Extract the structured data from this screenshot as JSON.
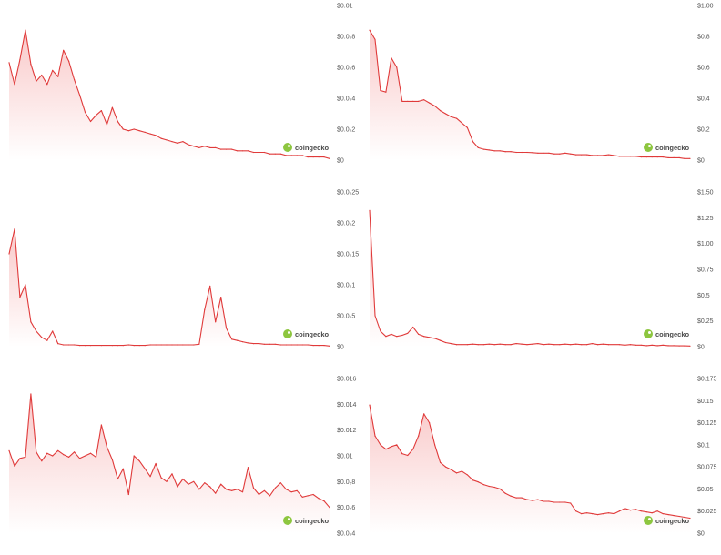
{
  "watermark": "coingecko",
  "colors": {
    "line": "#e03a3a",
    "fill_top": "#f9c9c9",
    "fill_bottom": "#ffffff",
    "axis_text": "#555555"
  },
  "chart_data": [
    {
      "type": "area",
      "ylim": [
        0,
        0.01
      ],
      "y_ticks": [
        "$0.01",
        "$0.0₂8",
        "$0.0₂6",
        "$0.0₂4",
        "$0.0₂2",
        "$0"
      ],
      "x": [
        0,
        1,
        2,
        3,
        4,
        5,
        6,
        7,
        8,
        9,
        10,
        11,
        12,
        13,
        14,
        15,
        16,
        17,
        18,
        19,
        20,
        21,
        22,
        23,
        24,
        25,
        26,
        27,
        28,
        29,
        30,
        31,
        32,
        33,
        34,
        35,
        36,
        37,
        38,
        39,
        40,
        41,
        42,
        43,
        44,
        45,
        46,
        47,
        48,
        49,
        50,
        51,
        52,
        53,
        54,
        55,
        56,
        57,
        58,
        59
      ],
      "values": [
        0.0063,
        0.0049,
        0.0065,
        0.0084,
        0.0062,
        0.0051,
        0.0055,
        0.0049,
        0.0058,
        0.0054,
        0.0071,
        0.0064,
        0.0052,
        0.0042,
        0.0031,
        0.0025,
        0.0029,
        0.0032,
        0.0023,
        0.0034,
        0.0025,
        0.002,
        0.0019,
        0.002,
        0.0019,
        0.0018,
        0.0017,
        0.0016,
        0.0014,
        0.0013,
        0.0012,
        0.0011,
        0.0012,
        0.001,
        0.0009,
        0.0008,
        0.0009,
        0.0008,
        0.0008,
        0.0007,
        0.0007,
        0.0007,
        0.0006,
        0.0006,
        0.0006,
        0.0005,
        0.0005,
        0.0005,
        0.0004,
        0.0004,
        0.0004,
        0.0003,
        0.0003,
        0.0003,
        0.0003,
        0.0002,
        0.0002,
        0.0002,
        0.0002,
        0.0001
      ]
    },
    {
      "type": "area",
      "ylim": [
        0,
        1.0
      ],
      "y_ticks": [
        "$1.00",
        "$0.8",
        "$0.6",
        "$0.4",
        "$0.2",
        "$0"
      ],
      "x": [
        0,
        1,
        2,
        3,
        4,
        5,
        6,
        7,
        8,
        9,
        10,
        11,
        12,
        13,
        14,
        15,
        16,
        17,
        18,
        19,
        20,
        21,
        22,
        23,
        24,
        25,
        26,
        27,
        28,
        29,
        30,
        31,
        32,
        33,
        34,
        35,
        36,
        37,
        38,
        39,
        40,
        41,
        42,
        43,
        44,
        45,
        46,
        47,
        48,
        49,
        50,
        51,
        52,
        53,
        54,
        55,
        56,
        57,
        58,
        59
      ],
      "values": [
        0.84,
        0.78,
        0.45,
        0.44,
        0.66,
        0.6,
        0.38,
        0.38,
        0.38,
        0.38,
        0.39,
        0.37,
        0.35,
        0.32,
        0.3,
        0.28,
        0.27,
        0.24,
        0.21,
        0.12,
        0.08,
        0.07,
        0.065,
        0.06,
        0.06,
        0.055,
        0.055,
        0.05,
        0.05,
        0.05,
        0.048,
        0.045,
        0.045,
        0.045,
        0.04,
        0.04,
        0.045,
        0.04,
        0.035,
        0.035,
        0.035,
        0.03,
        0.03,
        0.03,
        0.035,
        0.03,
        0.025,
        0.025,
        0.025,
        0.025,
        0.02,
        0.02,
        0.02,
        0.02,
        0.02,
        0.015,
        0.015,
        0.015,
        0.01,
        0.01
      ]
    },
    {
      "type": "area",
      "ylim": [
        0,
        0.025
      ],
      "y_ticks": [
        "$0.0₂25",
        "$0.0₂2",
        "$0.0₂15",
        "$0.0₂1",
        "$0.0₂5",
        "$0"
      ],
      "x": [
        0,
        1,
        2,
        3,
        4,
        5,
        6,
        7,
        8,
        9,
        10,
        11,
        12,
        13,
        14,
        15,
        16,
        17,
        18,
        19,
        20,
        21,
        22,
        23,
        24,
        25,
        26,
        27,
        28,
        29,
        30,
        31,
        32,
        33,
        34,
        35,
        36,
        37,
        38,
        39,
        40,
        41,
        42,
        43,
        44,
        45,
        46,
        47,
        48,
        49,
        50,
        51,
        52,
        53,
        54,
        55,
        56,
        57,
        58,
        59
      ],
      "values": [
        0.015,
        0.019,
        0.008,
        0.01,
        0.004,
        0.0025,
        0.0015,
        0.001,
        0.0025,
        0.0005,
        0.0003,
        0.0003,
        0.0003,
        0.0002,
        0.0002,
        0.0002,
        0.0002,
        0.0002,
        0.0002,
        0.0002,
        0.0002,
        0.0002,
        0.0003,
        0.0002,
        0.0002,
        0.0002,
        0.0003,
        0.0003,
        0.0003,
        0.0003,
        0.0003,
        0.0003,
        0.0003,
        0.0003,
        0.0003,
        0.0004,
        0.006,
        0.0098,
        0.004,
        0.008,
        0.003,
        0.0012,
        0.001,
        0.0008,
        0.0006,
        0.0005,
        0.0005,
        0.0004,
        0.0004,
        0.0004,
        0.0003,
        0.0003,
        0.0003,
        0.0003,
        0.0003,
        0.0003,
        0.0002,
        0.0002,
        0.0002,
        0.0001
      ]
    },
    {
      "type": "area",
      "ylim": [
        0,
        1.5
      ],
      "y_ticks": [
        "$1.50",
        "$1.25",
        "$1.00",
        "$0.75",
        "$0.5",
        "$0.25",
        "$0"
      ],
      "x": [
        0,
        1,
        2,
        3,
        4,
        5,
        6,
        7,
        8,
        9,
        10,
        11,
        12,
        13,
        14,
        15,
        16,
        17,
        18,
        19,
        20,
        21,
        22,
        23,
        24,
        25,
        26,
        27,
        28,
        29,
        30,
        31,
        32,
        33,
        34,
        35,
        36,
        37,
        38,
        39,
        40,
        41,
        42,
        43,
        44,
        45,
        46,
        47,
        48,
        49,
        50,
        51,
        52,
        53,
        54,
        55,
        56,
        57,
        58,
        59
      ],
      "values": [
        1.32,
        0.3,
        0.15,
        0.1,
        0.12,
        0.1,
        0.11,
        0.13,
        0.19,
        0.12,
        0.1,
        0.09,
        0.08,
        0.06,
        0.04,
        0.03,
        0.02,
        0.02,
        0.02,
        0.025,
        0.02,
        0.02,
        0.025,
        0.02,
        0.025,
        0.02,
        0.02,
        0.03,
        0.025,
        0.02,
        0.025,
        0.03,
        0.02,
        0.025,
        0.02,
        0.02,
        0.025,
        0.02,
        0.025,
        0.02,
        0.02,
        0.03,
        0.02,
        0.025,
        0.02,
        0.02,
        0.02,
        0.015,
        0.02,
        0.015,
        0.015,
        0.01,
        0.015,
        0.01,
        0.015,
        0.01,
        0.01,
        0.008,
        0.008,
        0.006
      ]
    },
    {
      "type": "area",
      "ylim": [
        0.004,
        0.016
      ],
      "y_ticks": [
        "$0.016",
        "$0.014",
        "$0.012",
        "$0.01",
        "$0.0₂8",
        "$0.0₂6",
        "$0.0₂4"
      ],
      "x": [
        0,
        1,
        2,
        3,
        4,
        5,
        6,
        7,
        8,
        9,
        10,
        11,
        12,
        13,
        14,
        15,
        16,
        17,
        18,
        19,
        20,
        21,
        22,
        23,
        24,
        25,
        26,
        27,
        28,
        29,
        30,
        31,
        32,
        33,
        34,
        35,
        36,
        37,
        38,
        39,
        40,
        41,
        42,
        43,
        44,
        45,
        46,
        47,
        48,
        49,
        50,
        51,
        52,
        53,
        54,
        55,
        56,
        57,
        58,
        59
      ],
      "values": [
        0.0104,
        0.0092,
        0.0098,
        0.0099,
        0.0148,
        0.0103,
        0.0096,
        0.0102,
        0.01,
        0.0104,
        0.0101,
        0.0099,
        0.0103,
        0.0098,
        0.01,
        0.0102,
        0.0099,
        0.0124,
        0.0107,
        0.0097,
        0.0082,
        0.009,
        0.007,
        0.01,
        0.0096,
        0.009,
        0.0084,
        0.0094,
        0.0083,
        0.008,
        0.0086,
        0.0076,
        0.0082,
        0.0078,
        0.008,
        0.0074,
        0.0079,
        0.0076,
        0.0071,
        0.0078,
        0.0074,
        0.0073,
        0.0074,
        0.0072,
        0.0091,
        0.0075,
        0.007,
        0.0073,
        0.0069,
        0.0075,
        0.0079,
        0.0074,
        0.0072,
        0.0073,
        0.0068,
        0.0069,
        0.007,
        0.0067,
        0.0065,
        0.006
      ]
    },
    {
      "type": "area",
      "ylim": [
        0,
        0.175
      ],
      "y_ticks": [
        "$0.175",
        "$0.15",
        "$0.125",
        "$0.1",
        "$0.075",
        "$0.05",
        "$0.025",
        "$0"
      ],
      "x": [
        0,
        1,
        2,
        3,
        4,
        5,
        6,
        7,
        8,
        9,
        10,
        11,
        12,
        13,
        14,
        15,
        16,
        17,
        18,
        19,
        20,
        21,
        22,
        23,
        24,
        25,
        26,
        27,
        28,
        29,
        30,
        31,
        32,
        33,
        34,
        35,
        36,
        37,
        38,
        39,
        40,
        41,
        42,
        43,
        44,
        45,
        46,
        47,
        48,
        49,
        50,
        51,
        52,
        53,
        54,
        55,
        56,
        57,
        58,
        59
      ],
      "values": [
        0.145,
        0.11,
        0.1,
        0.095,
        0.098,
        0.1,
        0.09,
        0.088,
        0.095,
        0.11,
        0.135,
        0.125,
        0.1,
        0.08,
        0.075,
        0.072,
        0.068,
        0.07,
        0.066,
        0.06,
        0.058,
        0.055,
        0.053,
        0.052,
        0.05,
        0.045,
        0.042,
        0.04,
        0.04,
        0.038,
        0.037,
        0.038,
        0.036,
        0.036,
        0.035,
        0.035,
        0.035,
        0.034,
        0.025,
        0.022,
        0.023,
        0.022,
        0.021,
        0.022,
        0.023,
        0.022,
        0.025,
        0.028,
        0.026,
        0.027,
        0.025,
        0.024,
        0.023,
        0.025,
        0.022,
        0.021,
        0.02,
        0.019,
        0.018,
        0.017
      ]
    }
  ]
}
